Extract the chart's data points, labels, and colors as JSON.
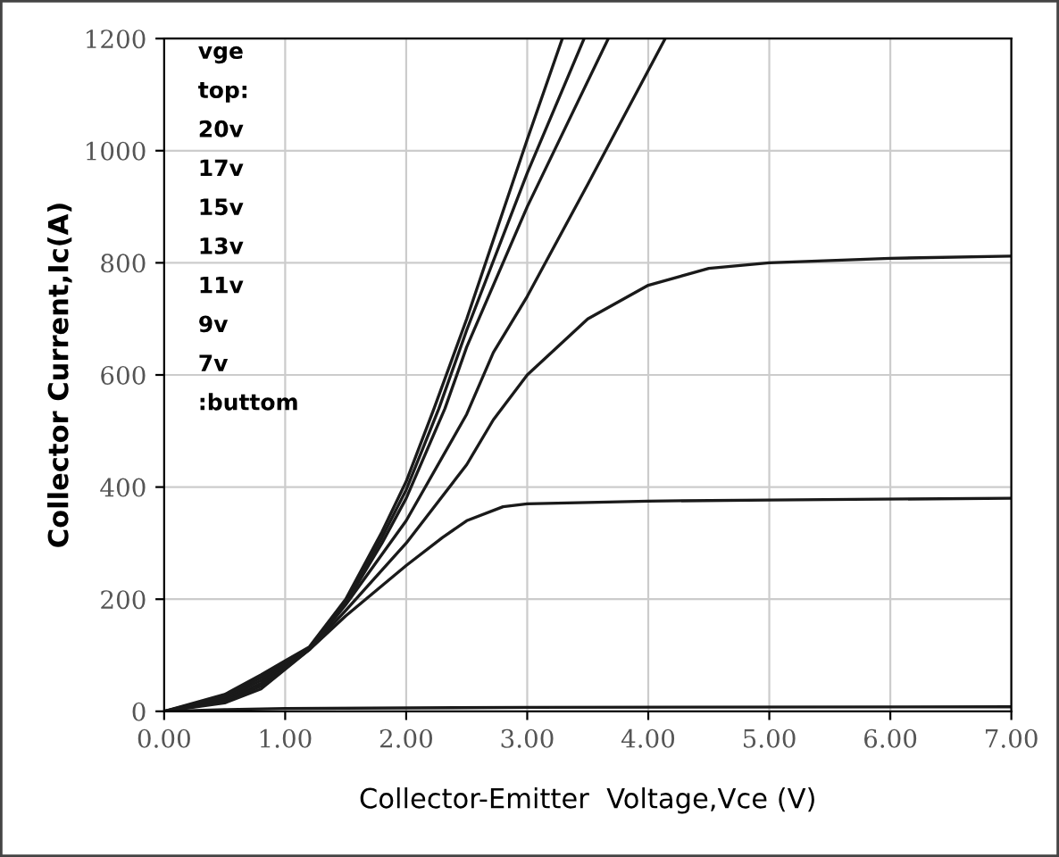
{
  "chart_data": {
    "type": "line",
    "xlabel": "Collector-Emitter  Voltage,Vce (V)",
    "ylabel": "Collector Current,Ic(A)",
    "annotations": [
      "vge",
      "top:",
      "20v",
      "17v",
      "15v",
      "13v",
      "11v",
      "9v",
      "7v",
      ":buttom"
    ],
    "xlim": [
      0,
      7
    ],
    "ylim": [
      0,
      1200
    ],
    "xticks": [
      {
        "value": 0,
        "label": "0.00"
      },
      {
        "value": 1,
        "label": "1.00"
      },
      {
        "value": 2,
        "label": "2.00"
      },
      {
        "value": 3,
        "label": "3.00"
      },
      {
        "value": 4,
        "label": "4.00"
      },
      {
        "value": 5,
        "label": "5.00"
      },
      {
        "value": 6,
        "label": "6.00"
      },
      {
        "value": 7,
        "label": "7.00"
      }
    ],
    "yticks": [
      0,
      200,
      400,
      600,
      800,
      1000,
      1200
    ],
    "grid": true,
    "marker": "none",
    "line_style": "solid",
    "series": [
      {
        "color": "#1a1a1a",
        "x": [
          0,
          0.5,
          0.8,
          1.0,
          1.2,
          1.5,
          1.8,
          2.0,
          2.23,
          2.5,
          3.0,
          3.29
        ],
        "values": [
          0,
          30,
          65,
          90,
          115,
          200,
          320,
          410,
          540,
          700,
          1020,
          1200
        ]
      },
      {
        "color": "#1a1a1a",
        "x": [
          0,
          0.5,
          0.8,
          1.0,
          1.2,
          1.5,
          1.8,
          2.0,
          2.27,
          2.5,
          3.0,
          3.47
        ],
        "values": [
          0,
          27,
          60,
          88,
          113,
          195,
          310,
          395,
          540,
          680,
          960,
          1200
        ]
      },
      {
        "color": "#1a1a1a",
        "x": [
          0,
          0.5,
          0.8,
          1.0,
          1.2,
          1.5,
          1.8,
          2.0,
          2.32,
          2.5,
          3.0,
          3.67
        ],
        "values": [
          0,
          24,
          55,
          85,
          112,
          192,
          300,
          380,
          540,
          650,
          900,
          1200
        ]
      },
      {
        "color": "#1a1a1a",
        "x": [
          0,
          0.5,
          0.8,
          1.0,
          1.2,
          1.5,
          2.0,
          2.5,
          2.72,
          3.0,
          3.5,
          4.14
        ],
        "values": [
          0,
          20,
          50,
          82,
          110,
          190,
          340,
          530,
          640,
          740,
          940,
          1200
        ]
      },
      {
        "color": "#1a1a1a",
        "x": [
          0,
          0.5,
          0.8,
          1.0,
          1.2,
          1.5,
          2.0,
          2.5,
          2.72,
          3.0,
          3.5,
          4.0,
          4.5,
          5.0,
          6.0,
          7.0
        ],
        "values": [
          0,
          17,
          45,
          78,
          110,
          180,
          300,
          440,
          520,
          600,
          700,
          760,
          790,
          800,
          808,
          812
        ]
      },
      {
        "color": "#1a1a1a",
        "x": [
          0,
          0.5,
          0.8,
          1.0,
          1.2,
          1.5,
          2.0,
          2.3,
          2.5,
          2.8,
          3.0,
          4.0,
          5.0,
          7.0
        ],
        "values": [
          0,
          15,
          40,
          75,
          110,
          170,
          260,
          310,
          340,
          365,
          370,
          375,
          377,
          380
        ]
      },
      {
        "color": "#1a1a1a",
        "x": [
          0,
          0.5,
          1.0,
          3.0,
          7.0
        ],
        "values": [
          0,
          3,
          5,
          7,
          8
        ]
      }
    ]
  }
}
